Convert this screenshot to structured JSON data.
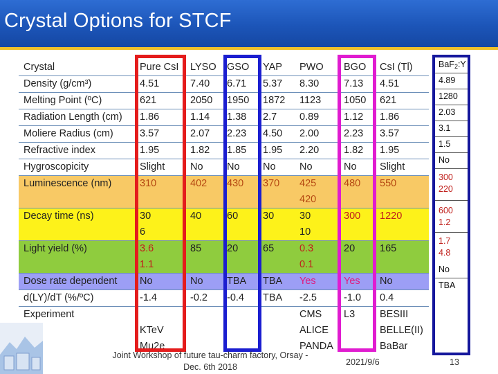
{
  "slide": {
    "title": "Crystal Options for STCF",
    "footer": {
      "workshop_line1": "Joint Workshop of future tau-charm factory, Orsay -",
      "workshop_line2": "Dec. 6th 2018",
      "date": "2021/9/6",
      "page_number": "13"
    }
  },
  "table": {
    "rows": [
      [
        "Crystal",
        "Pure CsI",
        "LYSO",
        "GSO",
        "YAP",
        "PWO",
        "BGO",
        "CsI (Tl)"
      ],
      [
        "Density (g/cm³)",
        "4.51",
        "7.40",
        "6.71",
        "5.37",
        "8.30",
        "7.13",
        "4.51"
      ],
      [
        "Melting Point (ºC)",
        "621",
        "2050",
        "1950",
        "1872",
        "1123",
        "1050",
        "621"
      ],
      [
        "Radiation Length (cm)",
        "1.86",
        "1.14",
        "1.38",
        "2.7",
        "0.89",
        "1.12",
        "1.86"
      ],
      [
        "Moliere Radius (cm)",
        "3.57",
        "2.07",
        "2.23",
        "4.50",
        "2.00",
        "2.23",
        "3.57"
      ],
      [
        "Refractive index",
        "1.95",
        "1.82",
        "1.85",
        "1.95",
        "2.20",
        "1.82",
        "1.95"
      ],
      [
        "Hygroscopicity",
        "Slight",
        "No",
        "No",
        "No",
        "No",
        "No",
        "Slight"
      ],
      [
        "Luminescence (nm)",
        "310",
        "402",
        "430",
        "370",
        "425",
        "480",
        "550"
      ],
      [
        "",
        "",
        "",
        "",
        "",
        "420",
        "",
        ""
      ],
      [
        "Decay time (ns)",
        "30",
        "40",
        "60",
        "30",
        "30",
        "300",
        "1220"
      ],
      [
        "",
        "6",
        "",
        "",
        "",
        "10",
        "",
        ""
      ],
      [
        "Light yield (%)",
        "3.6",
        "85",
        "20",
        "65",
        "0.3",
        "20",
        "165"
      ],
      [
        "",
        "1.1",
        "",
        "",
        "",
        "0.1",
        "",
        ""
      ],
      [
        "Dose rate dependent",
        "No",
        "No",
        "TBA",
        "TBA",
        "Yes",
        "Yes",
        "No"
      ],
      [
        "d(LY)/dT (%/ºC)",
        "-1.4",
        "-0.2",
        "-0.4",
        "TBA",
        "-2.5",
        "-1.0",
        "0.4"
      ],
      [
        "Experiment",
        "",
        "",
        "",
        "",
        "CMS",
        "L3",
        "BESIII"
      ],
      [
        "",
        "KTeV",
        "",
        "",
        "",
        "ALICE",
        "",
        "BELLE(II)"
      ],
      [
        "",
        "Mu2e",
        "",
        "",
        "",
        "PANDA",
        "",
        "BaBar"
      ]
    ]
  },
  "baf2_column": {
    "header_main": "BaF",
    "header_sub": "2",
    "header_suffix": ":Y",
    "values": [
      "4.89",
      "1280",
      "2.03",
      "3.1",
      "1.5",
      "No",
      "300",
      "220",
      "600",
      "1.2",
      "1.7",
      "4.8",
      "No",
      "TBA"
    ]
  },
  "colors": {
    "title_bar": "#1c55b8",
    "title_rule": "#f0c12a",
    "row_luminescence": "#f8c965",
    "row_decay": "#fdf21a",
    "row_light_yield": "#8fcc3e",
    "row_dose_rate": "#9c9ef5",
    "highlight_pure_csi": "#e41c1c",
    "highlight_gso": "#1b1ed0",
    "highlight_bgo": "#e01cd0",
    "highlight_baf2": "#15179c"
  }
}
